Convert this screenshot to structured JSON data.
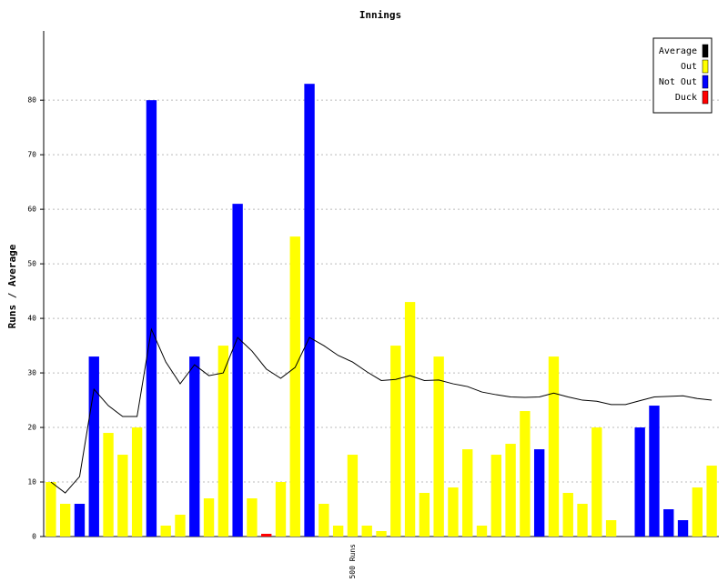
{
  "chart_data": {
    "type": "bar",
    "title": "Innings",
    "y_label": "Runs / Average",
    "categories": [
      null,
      null,
      null,
      null,
      null,
      null,
      null,
      null,
      null,
      null,
      null,
      null,
      null,
      null,
      null,
      null,
      null,
      null,
      null,
      null,
      null,
      "500 Runs",
      null,
      null,
      null,
      null,
      null,
      null,
      null,
      null,
      null,
      null,
      null,
      null,
      null,
      null,
      null,
      null,
      null,
      null,
      null,
      null,
      null,
      null,
      null,
      null,
      null
    ],
    "ylim": [
      0,
      92.7
    ],
    "yticks": [
      0,
      10,
      20,
      30,
      40,
      50,
      60,
      70,
      80
    ],
    "grid": true,
    "legend": "top-right",
    "series": [
      {
        "name": "Average",
        "type": "line",
        "color": "#000000",
        "values": [
          10,
          8,
          11,
          27,
          24,
          22,
          22,
          38,
          32,
          28,
          31.5,
          29.5,
          30,
          36.5,
          34,
          30.7,
          29,
          31,
          36.5,
          35,
          33.2,
          32,
          30.2,
          28.6,
          28.8,
          29.5,
          28.6,
          28.7,
          28,
          27.5,
          26.5,
          26,
          25.6,
          25.5,
          25.6,
          26.3,
          25.6,
          25,
          24.8,
          24.2,
          24.2,
          24.9,
          25.6,
          25.7,
          25.8,
          25.3,
          25
        ]
      },
      {
        "name": "Out",
        "color": "#ffff00",
        "values": [
          10,
          6,
          null,
          null,
          19,
          15,
          20,
          null,
          2,
          4,
          null,
          7,
          35,
          null,
          7,
          null,
          10,
          55,
          null,
          6,
          2,
          15,
          2,
          1,
          35,
          43,
          8,
          33,
          9,
          16,
          2,
          15,
          17,
          23,
          null,
          33,
          8,
          6,
          20,
          3,
          0,
          null,
          null,
          null,
          null,
          9,
          13
        ]
      },
      {
        "name": "Not Out",
        "color": "#0000ff",
        "values": [
          null,
          null,
          6,
          33,
          null,
          null,
          null,
          80,
          null,
          null,
          33,
          null,
          null,
          61,
          null,
          null,
          null,
          null,
          83,
          null,
          null,
          null,
          null,
          null,
          null,
          null,
          null,
          null,
          null,
          null,
          null,
          null,
          null,
          null,
          16,
          null,
          null,
          null,
          null,
          null,
          null,
          20,
          24,
          5,
          3,
          null,
          null
        ]
      },
      {
        "name": "Duck",
        "color": "#ff0000",
        "values": [
          null,
          null,
          null,
          null,
          null,
          null,
          null,
          null,
          null,
          null,
          null,
          null,
          null,
          null,
          null,
          0.5,
          null,
          null,
          null,
          null,
          null,
          null,
          null,
          null,
          null,
          null,
          null,
          null,
          null,
          null,
          null,
          null,
          null,
          null,
          null,
          null,
          null,
          null,
          null,
          null,
          null,
          null,
          null,
          null,
          null,
          null,
          null
        ]
      }
    ]
  }
}
